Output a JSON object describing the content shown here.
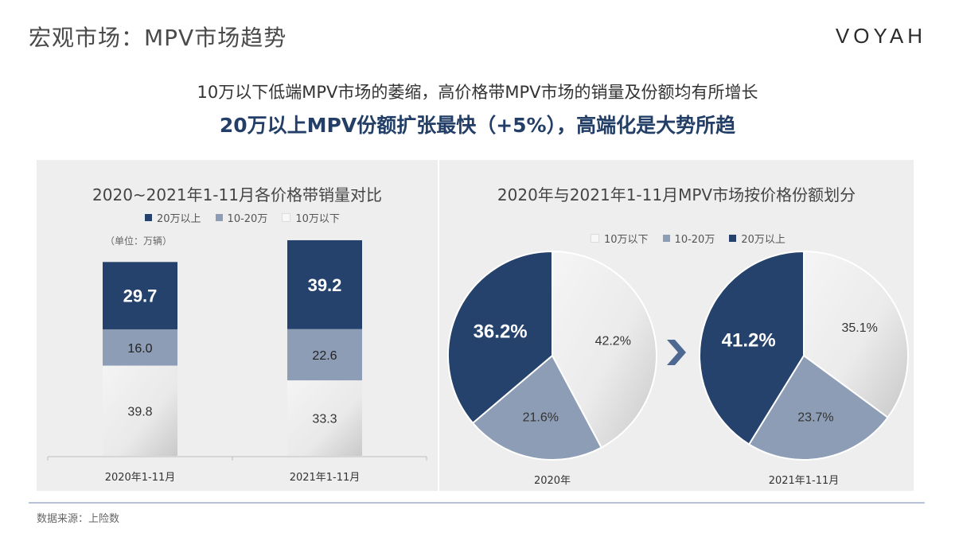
{
  "header": {
    "title": "宏观市场：MPV市场趋势",
    "brand": "VOYAH"
  },
  "headline": {
    "line1": "10万以下低端MPV市场的萎缩，高价格带MPV市场的销量及份额均有所增长",
    "line2": "20万以上MPV份额扩张最快（+5%），高端化是大势所趋"
  },
  "colors": {
    "above_20": "#24426b",
    "mid_10_20": "#8d9db6",
    "below_10": "#e6e6e6",
    "headline_blue": "#233f67"
  },
  "chart_data": [
    {
      "type": "bar",
      "stacked": true,
      "title": "2020~2021年1-11月各价格带销量对比",
      "unit_note": "（单位：万辆）",
      "legend": [
        "20万以上",
        "10-20万",
        "10万以下"
      ],
      "categories": [
        "2020年1-11月",
        "2021年1-11月"
      ],
      "series": [
        {
          "name": "10万以下",
          "values": [
            39.8,
            33.3
          ]
        },
        {
          "name": "10-20万",
          "values": [
            16.0,
            22.6
          ]
        },
        {
          "name": "20万以上",
          "values": [
            29.7,
            39.2
          ]
        }
      ],
      "value_labels": [
        [
          "39.8",
          "16.0",
          "29.7"
        ],
        [
          "33.3",
          "22.6",
          "39.2"
        ]
      ]
    },
    {
      "type": "pie",
      "title": "2020年与2021年1-11月MPV市场按价格份额划分",
      "legend": [
        "10万以下",
        "10-20万",
        "20万以上"
      ],
      "pies": [
        {
          "label": "2020年",
          "slices": [
            {
              "name": "10万以下",
              "value": 42.2,
              "label": "42.2%"
            },
            {
              "name": "10-20万",
              "value": 21.6,
              "label": "21.6%"
            },
            {
              "name": "20万以上",
              "value": 36.2,
              "label": "36.2%"
            }
          ]
        },
        {
          "label": "2021年1-11月",
          "slices": [
            {
              "name": "10万以下",
              "value": 35.1,
              "label": "35.1%"
            },
            {
              "name": "10-20万",
              "value": 23.7,
              "label": "23.7%"
            },
            {
              "name": "20万以上",
              "value": 41.2,
              "label": "41.2%"
            }
          ]
        }
      ]
    }
  ],
  "footer": {
    "source": "数据来源：上险数"
  }
}
